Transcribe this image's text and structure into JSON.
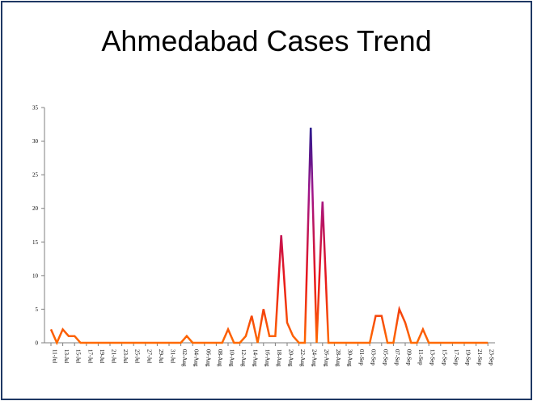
{
  "chart_data": {
    "type": "line",
    "title": "Ahmedabad Cases Trend",
    "xlabel": "",
    "ylabel": "",
    "ylim": [
      0,
      35
    ],
    "yticks": [
      0,
      5,
      10,
      15,
      20,
      25,
      30,
      35
    ],
    "grid": false,
    "legend": "none",
    "x": [
      "11-Jul",
      "12-Jul",
      "13-Jul",
      "14-Jul",
      "15-Jul",
      "16-Jul",
      "17-Jul",
      "18-Jul",
      "19-Jul",
      "20-Jul",
      "21-Jul",
      "22-Jul",
      "23-Jul",
      "24-Jul",
      "25-Jul",
      "26-Jul",
      "27-Jul",
      "28-Jul",
      "29-Jul",
      "30-Jul",
      "31-Jul",
      "1-Aug",
      "2-Aug",
      "3-Aug",
      "4-Aug",
      "5-Aug",
      "6-Aug",
      "7-Aug",
      "8-Aug",
      "9-Aug",
      "10-Aug",
      "11-Aug",
      "12-Aug",
      "13-Aug",
      "14-Aug",
      "15-Aug",
      "16-Aug",
      "17-Aug",
      "18-Aug",
      "19-Aug",
      "20-Aug",
      "21-Aug",
      "22-Aug",
      "23-Aug",
      "24-Aug",
      "25-Aug",
      "26-Aug",
      "27-Aug",
      "28-Aug",
      "29-Aug",
      "30-Aug",
      "31-Aug",
      "1-Sep",
      "2-Sep",
      "3-Sep",
      "4-Sep",
      "5-Sep",
      "6-Sep",
      "7-Sep",
      "8-Sep",
      "9-Sep",
      "10-Sep",
      "11-Sep",
      "12-Sep",
      "13-Sep",
      "14-Sep",
      "15-Sep",
      "16-Sep",
      "17-Sep",
      "18-Sep",
      "19-Sep",
      "20-Sep",
      "21-Sep",
      "22-Sep",
      "23-Sep"
    ],
    "xtick_labels": [
      "11-Jul",
      "13-Jul",
      "15-Jul",
      "17-Jul",
      "19-Jul",
      "21-Jul",
      "23-Jul",
      "25-Jul",
      "27-Jul",
      "29-Jul",
      "31-Jul",
      "02-Aug",
      "04-Aug",
      "06-Aug",
      "08-Aug",
      "10-Aug",
      "12-Aug",
      "14-Aug",
      "16-Aug",
      "18-Aug",
      "20-Aug",
      "22-Aug",
      "24-Aug",
      "26-Aug",
      "28-Aug",
      "30-Aug",
      "01-Sep",
      "03-Sep",
      "05-Sep",
      "07-Sep",
      "09-Sep",
      "11-Sep",
      "13-Sep",
      "15-Sep",
      "17-Sep",
      "19-Sep",
      "21-Sep",
      "23-Sep"
    ],
    "series": [
      {
        "values": [
          2,
          0,
          2,
          1,
          1,
          0,
          0,
          0,
          0,
          0,
          0,
          0,
          0,
          0,
          0,
          0,
          0,
          0,
          0,
          0,
          0,
          0,
          0,
          1,
          0,
          0,
          0,
          0,
          0,
          0,
          2,
          0,
          0,
          1,
          4,
          0,
          5,
          1,
          1,
          16,
          3,
          1,
          0,
          0,
          32,
          0,
          21,
          0,
          0,
          0,
          0,
          0,
          0,
          0,
          0,
          4,
          4,
          0,
          0,
          5,
          3,
          0,
          0,
          2,
          0,
          0,
          0,
          0,
          0,
          0,
          0,
          0,
          0,
          0,
          0
        ]
      }
    ],
    "colors": {
      "low": "#ff6a00",
      "mid": "#e8161b",
      "high": "#a0148a",
      "peak": "#2a1a8c",
      "frame": "#1f3864"
    }
  }
}
